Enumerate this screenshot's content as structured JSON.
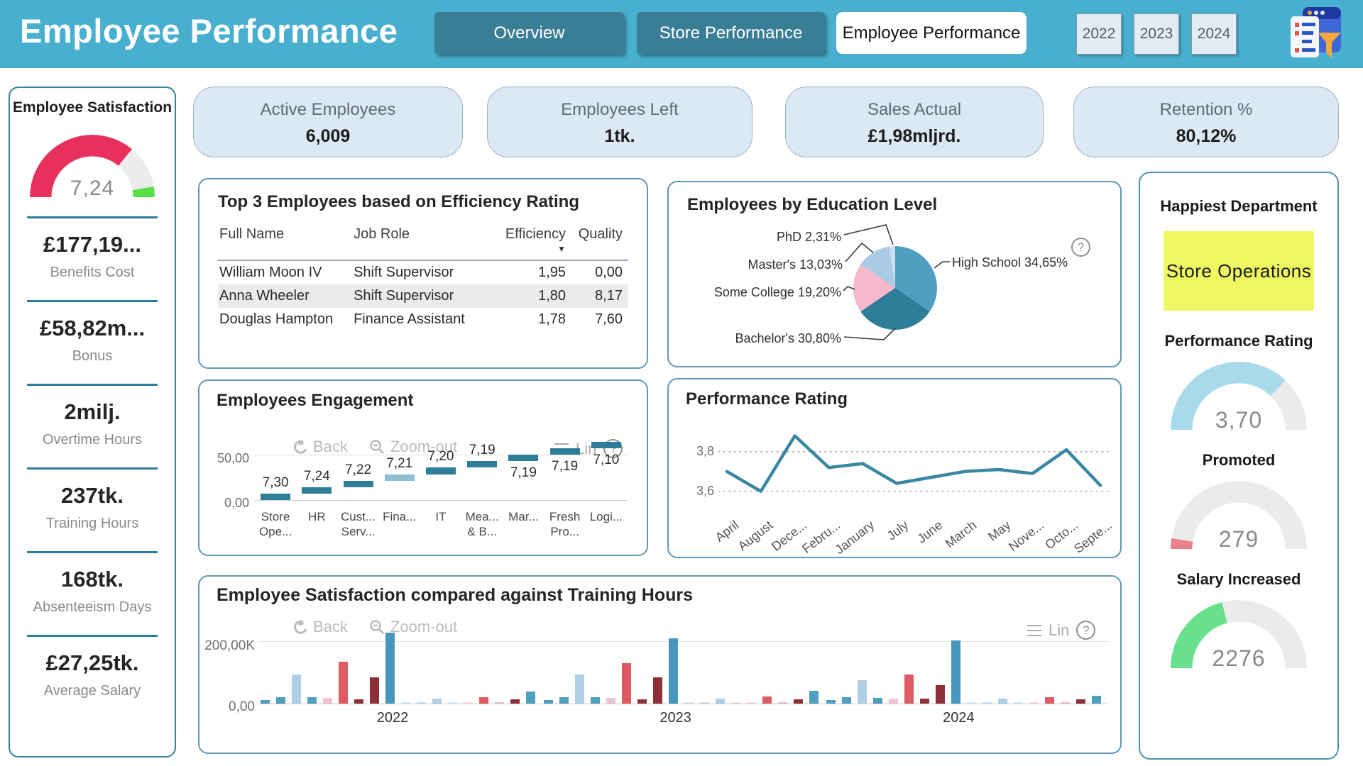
{
  "header": {
    "title": "Employee Performance",
    "nav": [
      {
        "label": "Overview",
        "active": false
      },
      {
        "label": "Store Performance",
        "active": false
      },
      {
        "label": "Employee Performance",
        "active": true
      }
    ],
    "year_buttons": [
      "2022",
      "2023",
      "2024"
    ]
  },
  "theme": {
    "header_bg": "#49AFCE",
    "nav_button_bg": "#3A7E95",
    "accent_teal": "#2E7D99",
    "card_border": "#5E9AB4",
    "kpi_pill_bg": "#DCE8F3",
    "highlight_yellow": "#EEF661"
  },
  "kpi_cards": [
    {
      "title": "Active Employees",
      "value": "6,009"
    },
    {
      "title": "Employees Left",
      "value": "1tk."
    },
    {
      "title": "Sales Actual",
      "value": "£1,98mljrd."
    },
    {
      "title": "Retention %",
      "value": "80,12%"
    }
  ],
  "left_panel": {
    "title": "Employee Satisfaction",
    "gauge": {
      "value": "7,24",
      "segments": [
        {
          "color": "#E8305F",
          "frac": 0.72
        },
        {
          "color": "#ECECEC",
          "frac": 0.225
        },
        {
          "color": "#57E048",
          "frac": 0.055
        }
      ]
    },
    "kpis": [
      {
        "value": "£177,19...",
        "label": "Benefits Cost"
      },
      {
        "value": "£58,82m...",
        "label": "Bonus"
      },
      {
        "value": "2milj.",
        "label": "Overtime Hours"
      },
      {
        "value": "237tk.",
        "label": "Training Hours"
      },
      {
        "value": "168tk.",
        "label": "Absenteeism Days"
      },
      {
        "value": "£27,25tk.",
        "label": "Average Salary"
      }
    ]
  },
  "top3_table": {
    "title": "Top 3 Employees based on Efficiency Rating",
    "columns": [
      "Full Name",
      "Job Role",
      "Efficiency",
      "Quality"
    ],
    "sorted_by": "Efficiency",
    "rows": [
      [
        "William Moon IV",
        "Shift Supervisor",
        "1,95",
        "0,00"
      ],
      [
        "Anna Wheeler",
        "Shift Supervisor",
        "1,80",
        "8,17"
      ],
      [
        "Douglas Hampton",
        "Finance Assistant",
        "1,78",
        "7,60"
      ]
    ]
  },
  "controls": {
    "back": "Back",
    "zoom_out": "Zoom-out",
    "lin": "Lin",
    "help": "?"
  },
  "right_panel": {
    "happiest_title": "Happiest Department",
    "happiest_value": "Store Operations",
    "gauges": [
      {
        "title": "Performance Rating",
        "value": "3,70",
        "segments": [
          {
            "color": "#A9DAEC",
            "frac": 0.74
          },
          {
            "color": "#EBEBEB",
            "frac": 0.26
          }
        ]
      },
      {
        "title": "Promoted",
        "value": "279",
        "segments": [
          {
            "color": "#E9818B",
            "frac": 0.05
          },
          {
            "color": "#EBEBEB",
            "frac": 0.95
          }
        ]
      },
      {
        "title": "Salary Increased",
        "value": "2276",
        "segments": [
          {
            "color": "#69E08C",
            "frac": 0.42
          },
          {
            "color": "#EBEBEB",
            "frac": 0.58
          }
        ]
      }
    ]
  },
  "chart_data": [
    {
      "id": "education-pie",
      "type": "pie",
      "title": "Employees by Education Level",
      "labels": [
        "High School",
        "Bachelor's",
        "Some College",
        "Master's",
        "PhD"
      ],
      "values": [
        34.65,
        30.8,
        19.2,
        13.03,
        2.31
      ],
      "display_labels": [
        "High School 34,65%",
        "Bachelor's 30,80%",
        "Some College 19,20%",
        "Master's 13,03%",
        "PhD 2,31%"
      ],
      "colors": [
        "#4E9FC0",
        "#2E7D99",
        "#F4B9CB",
        "#A9CBE3",
        "#CBDFF0"
      ],
      "start": "top",
      "direction": "clockwise",
      "legend_position": "callout-labels"
    },
    {
      "id": "employees-engagement",
      "type": "bar",
      "subtype": "waterfall-steps",
      "title": "Employees Engagement",
      "categories": [
        [
          "Store",
          "Ope..."
        ],
        [
          "HR"
        ],
        [
          "Cust...",
          "Serv..."
        ],
        [
          "Fina..."
        ],
        [
          "IT"
        ],
        [
          "Mea...",
          "& B..."
        ],
        [
          "Mar..."
        ],
        [
          "Fresh",
          "Pro..."
        ],
        [
          "Logi..."
        ]
      ],
      "values": [
        7.3,
        7.24,
        7.22,
        7.21,
        7.2,
        7.19,
        7.19,
        7.19,
        7.1
      ],
      "value_labels": [
        "7,30",
        "7,24",
        "7,22",
        "7,21",
        "7,20",
        "7,19",
        "7,19",
        "7,19",
        "7,10"
      ],
      "labels_below_from": 6,
      "y_ticks": [
        {
          "label": "50,00",
          "value": 50
        },
        {
          "label": "0,00",
          "value": 0
        }
      ],
      "ylim": [
        0,
        68
      ],
      "bar_color": "#2E7D99",
      "highlight_index": 3,
      "highlight_color": "#8FC0D1"
    },
    {
      "id": "performance-rating",
      "type": "line",
      "title": "Performance Rating",
      "categories": [
        "April",
        "August",
        "Dece...",
        "Febru...",
        "January",
        "July",
        "June",
        "March",
        "May",
        "Nove...",
        "Octo...",
        "Septe..."
      ],
      "values": [
        3.7,
        3.6,
        3.88,
        3.72,
        3.74,
        3.64,
        3.67,
        3.7,
        3.71,
        3.69,
        3.81,
        3.63
      ],
      "y_ticks": [
        {
          "label": "3,8",
          "value": 3.8
        },
        {
          "label": "3,6",
          "value": 3.6
        }
      ],
      "ylim": [
        3.52,
        3.95
      ],
      "line_color": "#3987A3",
      "grid": "dotted"
    },
    {
      "id": "satisfaction-vs-training",
      "type": "bar",
      "subtype": "grouped-by-year",
      "title": "Employee Satisfaction compared against Training Hours",
      "y_ticks": [
        {
          "label": "200,00K",
          "value": 200
        },
        {
          "label": "0,00",
          "value": 0
        }
      ],
      "ylim": [
        0,
        245
      ],
      "unit": "thousands",
      "label_under_bar_index": 8,
      "groups": [
        {
          "label": "2022",
          "heights": [
            12,
            20,
            95,
            20,
            18,
            135,
            13,
            85,
            230,
            3,
            3,
            15,
            4,
            2,
            20,
            2,
            13,
            40
          ],
          "colors": [
            "#4E9FC0",
            "#4E9FC0",
            "#AFCFE7",
            "#4E9FC0",
            "#F2C4D2",
            "#DE5B63",
            "#8E2F38",
            "#8E2F38",
            "#4796BC",
            "#D9E7F2",
            "#CFE0EE",
            "#AFCFE7",
            "#D9E7F2",
            "#F4DCE4",
            "#DE5B63",
            "#E8C2C6",
            "#8E2F38",
            "#4E9FC0"
          ]
        },
        {
          "label": "2023",
          "heights": [
            12,
            20,
            95,
            20,
            18,
            132,
            13,
            85,
            212,
            3,
            3,
            15,
            4,
            2,
            22,
            2,
            13,
            42
          ],
          "colors": [
            "#4E9FC0",
            "#4E9FC0",
            "#AFCFE7",
            "#4E9FC0",
            "#F2C4D2",
            "#DE5B63",
            "#8E2F38",
            "#8E2F38",
            "#4796BC",
            "#D9E7F2",
            "#CFE0EE",
            "#AFCFE7",
            "#D9E7F2",
            "#F4DCE4",
            "#DE5B63",
            "#E8C2C6",
            "#8E2F38",
            "#4E9FC0"
          ]
        },
        {
          "label": "2024",
          "heights": [
            12,
            20,
            75,
            18,
            15,
            95,
            15,
            60,
            205,
            3,
            3,
            15,
            4,
            2,
            20,
            3,
            13,
            25
          ],
          "colors": [
            "#4E9FC0",
            "#4E9FC0",
            "#AFCFE7",
            "#4E9FC0",
            "#F2C4D2",
            "#DE5B63",
            "#8E2F38",
            "#8E2F38",
            "#4796BC",
            "#D9E7F2",
            "#CFE0EE",
            "#AFCFE7",
            "#D9E7F2",
            "#F4DCE4",
            "#DE5B63",
            "#E8C2C6",
            "#8E2F38",
            "#4E9FC0"
          ]
        }
      ]
    }
  ]
}
